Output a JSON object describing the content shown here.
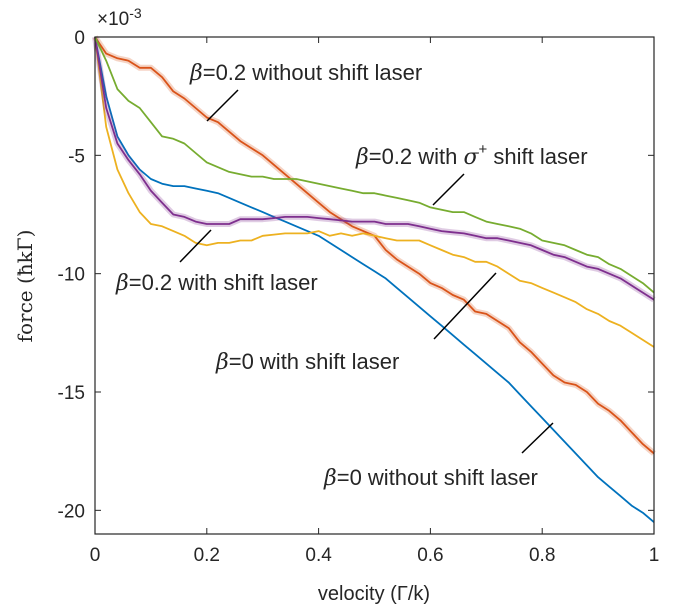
{
  "chart_data": {
    "type": "line",
    "xlabel": "velocity (Γ/k)",
    "ylabel": "force (ħkΓ)",
    "exponent": "×10",
    "exponent_power": "-3",
    "xlim": [
      0,
      1
    ],
    "ylim": [
      -21,
      0
    ],
    "x_ticks": [
      "0",
      "0.2",
      "0.4",
      "0.6",
      "0.8",
      "1"
    ],
    "y_ticks": [
      "0",
      "-5",
      "-10",
      "-15",
      "-20"
    ],
    "grid": false,
    "series": [
      {
        "color": "#0072BD",
        "x": [
          0,
          0.02,
          0.04,
          0.06,
          0.08,
          0.1,
          0.12,
          0.14,
          0.16,
          0.18,
          0.2,
          0.22,
          0.24,
          0.26,
          0.28,
          0.3,
          0.32,
          0.34,
          0.36,
          0.38,
          0.4,
          0.42,
          0.44,
          0.46,
          0.48,
          0.5,
          0.52,
          0.54,
          0.56,
          0.58,
          0.6,
          0.62,
          0.64,
          0.66,
          0.68,
          0.7,
          0.72,
          0.74,
          0.76,
          0.78,
          0.8,
          0.82,
          0.84,
          0.86,
          0.88,
          0.9,
          0.92,
          0.94,
          0.96,
          0.98,
          1.0
        ],
        "y": [
          0,
          -2.5,
          -4.2,
          -5.0,
          -5.6,
          -6.0,
          -6.2,
          -6.3,
          -6.3,
          -6.4,
          -6.5,
          -6.6,
          -6.8,
          -7.0,
          -7.2,
          -7.4,
          -7.6,
          -7.8,
          -8.0,
          -8.2,
          -8.4,
          -8.7,
          -9.0,
          -9.3,
          -9.6,
          -9.9,
          -10.2,
          -10.6,
          -11.0,
          -11.4,
          -11.8,
          -12.2,
          -12.6,
          -13.0,
          -13.4,
          -13.8,
          -14.2,
          -14.6,
          -15.1,
          -15.6,
          -16.1,
          -16.6,
          -17.1,
          -17.6,
          -18.1,
          -18.6,
          -19.0,
          -19.4,
          -19.8,
          -20.1,
          -20.5
        ]
      },
      {
        "color": "#D95319",
        "x": [
          0,
          0.02,
          0.04,
          0.06,
          0.08,
          0.1,
          0.12,
          0.14,
          0.16,
          0.18,
          0.2,
          0.22,
          0.24,
          0.26,
          0.28,
          0.3,
          0.32,
          0.34,
          0.36,
          0.38,
          0.4,
          0.42,
          0.44,
          0.46,
          0.48,
          0.5,
          0.52,
          0.54,
          0.56,
          0.58,
          0.6,
          0.62,
          0.64,
          0.66,
          0.68,
          0.7,
          0.72,
          0.74,
          0.76,
          0.78,
          0.8,
          0.82,
          0.84,
          0.86,
          0.88,
          0.9,
          0.92,
          0.94,
          0.96,
          0.98,
          1.0
        ],
        "y": [
          0,
          -0.7,
          -0.9,
          -1.0,
          -1.3,
          -1.3,
          -1.7,
          -2.3,
          -2.6,
          -3.0,
          -3.4,
          -3.6,
          -4.0,
          -4.4,
          -4.7,
          -5.0,
          -5.4,
          -5.8,
          -6.2,
          -6.6,
          -7.0,
          -7.4,
          -7.7,
          -8.0,
          -8.2,
          -8.4,
          -9.0,
          -9.4,
          -9.7,
          -10.0,
          -10.4,
          -10.6,
          -10.9,
          -11.1,
          -11.6,
          -11.7,
          -12.0,
          -12.3,
          -12.9,
          -13.3,
          -13.8,
          -14.3,
          -14.6,
          -14.7,
          -15.0,
          -15.5,
          -15.8,
          -16.2,
          -16.7,
          -17.2,
          -17.6
        ]
      },
      {
        "color": "#EDB120",
        "x": [
          0,
          0.02,
          0.04,
          0.06,
          0.08,
          0.1,
          0.12,
          0.14,
          0.16,
          0.18,
          0.2,
          0.22,
          0.24,
          0.26,
          0.28,
          0.3,
          0.32,
          0.34,
          0.36,
          0.38,
          0.4,
          0.42,
          0.44,
          0.46,
          0.48,
          0.5,
          0.52,
          0.54,
          0.56,
          0.58,
          0.6,
          0.62,
          0.64,
          0.66,
          0.68,
          0.7,
          0.72,
          0.74,
          0.76,
          0.78,
          0.8,
          0.82,
          0.84,
          0.86,
          0.88,
          0.9,
          0.92,
          0.94,
          0.96,
          0.98,
          1.0
        ],
        "y": [
          0,
          -3.8,
          -5.6,
          -6.6,
          -7.4,
          -7.9,
          -8.0,
          -8.2,
          -8.4,
          -8.7,
          -8.8,
          -8.7,
          -8.7,
          -8.6,
          -8.6,
          -8.4,
          -8.35,
          -8.3,
          -8.3,
          -8.3,
          -8.2,
          -8.4,
          -8.3,
          -8.4,
          -8.3,
          -8.4,
          -8.5,
          -8.6,
          -8.6,
          -8.6,
          -8.8,
          -9.0,
          -9.2,
          -9.3,
          -9.5,
          -9.5,
          -9.7,
          -10.0,
          -10.3,
          -10.4,
          -10.6,
          -10.8,
          -11.0,
          -11.2,
          -11.5,
          -11.7,
          -12.0,
          -12.2,
          -12.5,
          -12.8,
          -13.1
        ]
      },
      {
        "color": "#7E2F8E",
        "x": [
          0,
          0.02,
          0.04,
          0.06,
          0.08,
          0.1,
          0.12,
          0.14,
          0.16,
          0.18,
          0.2,
          0.22,
          0.24,
          0.26,
          0.28,
          0.3,
          0.32,
          0.34,
          0.36,
          0.38,
          0.4,
          0.42,
          0.44,
          0.46,
          0.48,
          0.5,
          0.52,
          0.54,
          0.56,
          0.58,
          0.6,
          0.62,
          0.64,
          0.66,
          0.68,
          0.7,
          0.72,
          0.74,
          0.76,
          0.78,
          0.8,
          0.82,
          0.84,
          0.86,
          0.88,
          0.9,
          0.92,
          0.94,
          0.96,
          0.98,
          1.0
        ],
        "y": [
          0,
          -3.0,
          -4.5,
          -5.2,
          -5.8,
          -6.5,
          -7.0,
          -7.5,
          -7.6,
          -7.8,
          -7.9,
          -7.9,
          -7.9,
          -7.7,
          -7.7,
          -7.7,
          -7.65,
          -7.6,
          -7.6,
          -7.6,
          -7.65,
          -7.7,
          -7.75,
          -7.8,
          -7.8,
          -7.8,
          -7.9,
          -7.9,
          -7.9,
          -8.0,
          -8.1,
          -8.2,
          -8.25,
          -8.3,
          -8.4,
          -8.5,
          -8.5,
          -8.6,
          -8.7,
          -8.8,
          -9.0,
          -9.2,
          -9.3,
          -9.5,
          -9.7,
          -9.8,
          -10.0,
          -10.2,
          -10.5,
          -10.8,
          -11.1
        ]
      },
      {
        "color": "#77AC30",
        "x": [
          0,
          0.02,
          0.04,
          0.06,
          0.08,
          0.1,
          0.12,
          0.14,
          0.16,
          0.18,
          0.2,
          0.22,
          0.24,
          0.26,
          0.28,
          0.3,
          0.32,
          0.34,
          0.36,
          0.38,
          0.4,
          0.42,
          0.44,
          0.46,
          0.48,
          0.5,
          0.52,
          0.54,
          0.56,
          0.58,
          0.6,
          0.62,
          0.64,
          0.66,
          0.68,
          0.7,
          0.72,
          0.74,
          0.76,
          0.78,
          0.8,
          0.82,
          0.84,
          0.86,
          0.88,
          0.9,
          0.92,
          0.94,
          0.96,
          0.98,
          1.0
        ],
        "y": [
          0,
          -1.0,
          -2.2,
          -2.7,
          -3.0,
          -3.6,
          -4.2,
          -4.3,
          -4.5,
          -4.9,
          -5.3,
          -5.5,
          -5.7,
          -5.8,
          -5.9,
          -5.9,
          -6.0,
          -6.0,
          -6.0,
          -6.1,
          -6.2,
          -6.3,
          -6.4,
          -6.5,
          -6.6,
          -6.6,
          -6.7,
          -6.8,
          -6.9,
          -7.0,
          -7.2,
          -7.3,
          -7.4,
          -7.4,
          -7.6,
          -7.8,
          -7.9,
          -8.0,
          -8.1,
          -8.3,
          -8.6,
          -8.7,
          -8.8,
          -9.0,
          -9.2,
          -9.3,
          -9.6,
          -9.8,
          -10.1,
          -10.4,
          -10.8
        ]
      }
    ],
    "annotations": [
      {
        "prefix": "β",
        "text": "=0.2 without shift laser",
        "sup": ""
      },
      {
        "prefix": "β",
        "text": "=0.2 with ",
        "sigma": "σ",
        "sup": "+",
        "suffix": " shift laser"
      },
      {
        "prefix": "β",
        "text": "=0.2 with shift laser",
        "sup": ""
      },
      {
        "prefix": "β",
        "text": "=0 with shift laser",
        "sup": ""
      },
      {
        "prefix": "β",
        "text": "=0 without shift laser",
        "sup": ""
      }
    ]
  }
}
